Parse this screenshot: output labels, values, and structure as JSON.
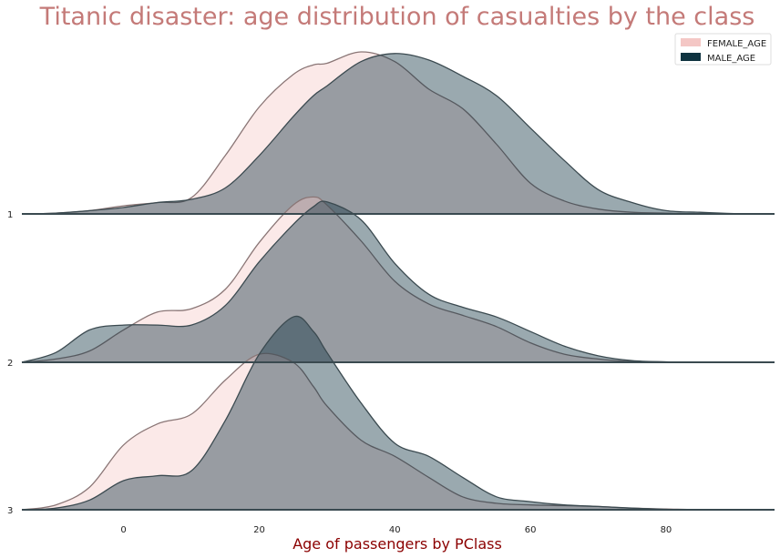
{
  "chart_data": {
    "type": "area",
    "subtype": "ridgeline-kde",
    "title": "Titanic disaster: age distribution of casualties by the class",
    "xlabel": "Age of passengers by PClass",
    "ylabel": "",
    "xlim": [
      -15,
      96
    ],
    "xticks": [
      0,
      20,
      40,
      60,
      80
    ],
    "row_labels": [
      "1",
      "2",
      "3"
    ],
    "grid": false,
    "legend": {
      "placement": "top-right",
      "entries": [
        {
          "label": "FEMALE_AGE",
          "color": "#f4c7c5"
        },
        {
          "label": "MALE_AGE",
          "color": "#0f3340"
        }
      ]
    },
    "x": [
      -15,
      -10,
      -5,
      0,
      5,
      10,
      15,
      20,
      25,
      28,
      30,
      35,
      40,
      45,
      50,
      55,
      60,
      65,
      70,
      75,
      80,
      85,
      90,
      96
    ],
    "rows": [
      {
        "label": "1",
        "series": [
          {
            "name": "FEMALE_AGE",
            "values": [
              0,
              0.005,
              0.02,
              0.05,
              0.07,
              0.1,
              0.36,
              0.66,
              0.86,
              0.92,
              0.93,
              1.0,
              0.94,
              0.77,
              0.65,
              0.43,
              0.19,
              0.08,
              0.03,
              0.01,
              0.005,
              0,
              0,
              0
            ]
          },
          {
            "name": "MALE_AGE",
            "values": [
              0,
              0.005,
              0.02,
              0.04,
              0.07,
              0.09,
              0.16,
              0.36,
              0.6,
              0.73,
              0.79,
              0.94,
              0.99,
              0.95,
              0.85,
              0.73,
              0.53,
              0.33,
              0.15,
              0.07,
              0.02,
              0.01,
              0.002,
              0
            ]
          }
        ]
      },
      {
        "label": "2",
        "series": [
          {
            "name": "FEMALE_AGE",
            "values": [
              0,
              0.02,
              0.07,
              0.2,
              0.31,
              0.33,
              0.45,
              0.74,
              0.97,
              1.02,
              0.97,
              0.75,
              0.5,
              0.36,
              0.29,
              0.22,
              0.12,
              0.05,
              0.02,
              0.005,
              0.002,
              0,
              0,
              0
            ]
          },
          {
            "name": "MALE_AGE",
            "values": [
              0,
              0.06,
              0.2,
              0.23,
              0.23,
              0.23,
              0.35,
              0.62,
              0.85,
              0.96,
              0.99,
              0.88,
              0.61,
              0.42,
              0.34,
              0.28,
              0.19,
              0.1,
              0.04,
              0.01,
              0.003,
              0,
              0,
              0
            ]
          }
        ]
      },
      {
        "label": "3",
        "series": [
          {
            "name": "FEMALE_AGE",
            "values": [
              0,
              0.03,
              0.14,
              0.4,
              0.53,
              0.59,
              0.8,
              0.96,
              0.91,
              0.76,
              0.64,
              0.43,
              0.33,
              0.2,
              0.08,
              0.04,
              0.03,
              0.025,
              0.02,
              0.01,
              0.005,
              0,
              0,
              0
            ]
          },
          {
            "name": "MALE_AGE",
            "values": [
              0,
              0.01,
              0.06,
              0.18,
              0.21,
              0.24,
              0.55,
              0.96,
              1.19,
              1.1,
              0.97,
              0.66,
              0.41,
              0.33,
              0.2,
              0.08,
              0.05,
              0.03,
              0.02,
              0.01,
              0.003,
              0,
              0,
              0
            ]
          }
        ]
      }
    ]
  }
}
